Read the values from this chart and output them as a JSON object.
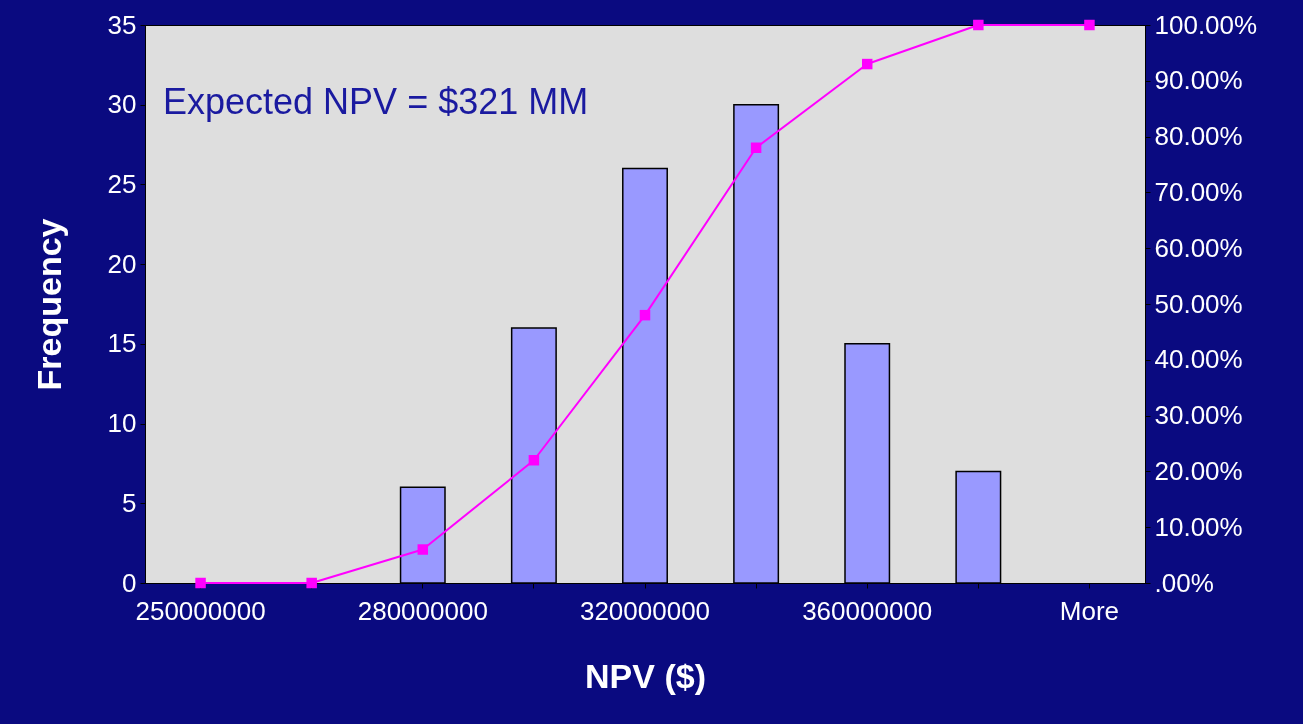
{
  "chart_data": {
    "type": "bar",
    "xlabel": "NPV ($)",
    "ylabel": "Frequency",
    "categories": [
      "250000000",
      null,
      "280000000",
      null,
      "320000000",
      null,
      "360000000",
      null,
      "More"
    ],
    "series": [
      {
        "color": "#9999ff",
        "values": [
          0,
          0,
          6,
          16,
          26,
          30,
          15,
          7,
          0
        ]
      },
      {
        "type": "line",
        "axis": "y2",
        "color": "#ff00ff",
        "values": [
          0,
          0,
          6,
          22,
          48,
          78,
          93,
          100,
          100
        ]
      }
    ],
    "ylim": [
      0,
      35
    ],
    "yticks": [
      0,
      5,
      10,
      15,
      20,
      25,
      30,
      35
    ],
    "y2lim": [
      0,
      100
    ],
    "y2ticks": [
      {
        "value": 0,
        "label": ".00%"
      },
      {
        "value": 10,
        "label": "10.00%"
      },
      {
        "value": 20,
        "label": "20.00%"
      },
      {
        "value": 30,
        "label": "30.00%"
      },
      {
        "value": 40,
        "label": "40.00%"
      },
      {
        "value": 50,
        "label": "50.00%"
      },
      {
        "value": 60,
        "label": "60.00%"
      },
      {
        "value": 70,
        "label": "70.00%"
      },
      {
        "value": 80,
        "label": "80.00%"
      },
      {
        "value": 90,
        "label": "90.00%"
      },
      {
        "value": 100,
        "label": "100.00%"
      }
    ],
    "annotations": [
      "Expected NPV = $321 MM"
    ],
    "marker": "square",
    "line_style": "solid",
    "grid": false
  }
}
